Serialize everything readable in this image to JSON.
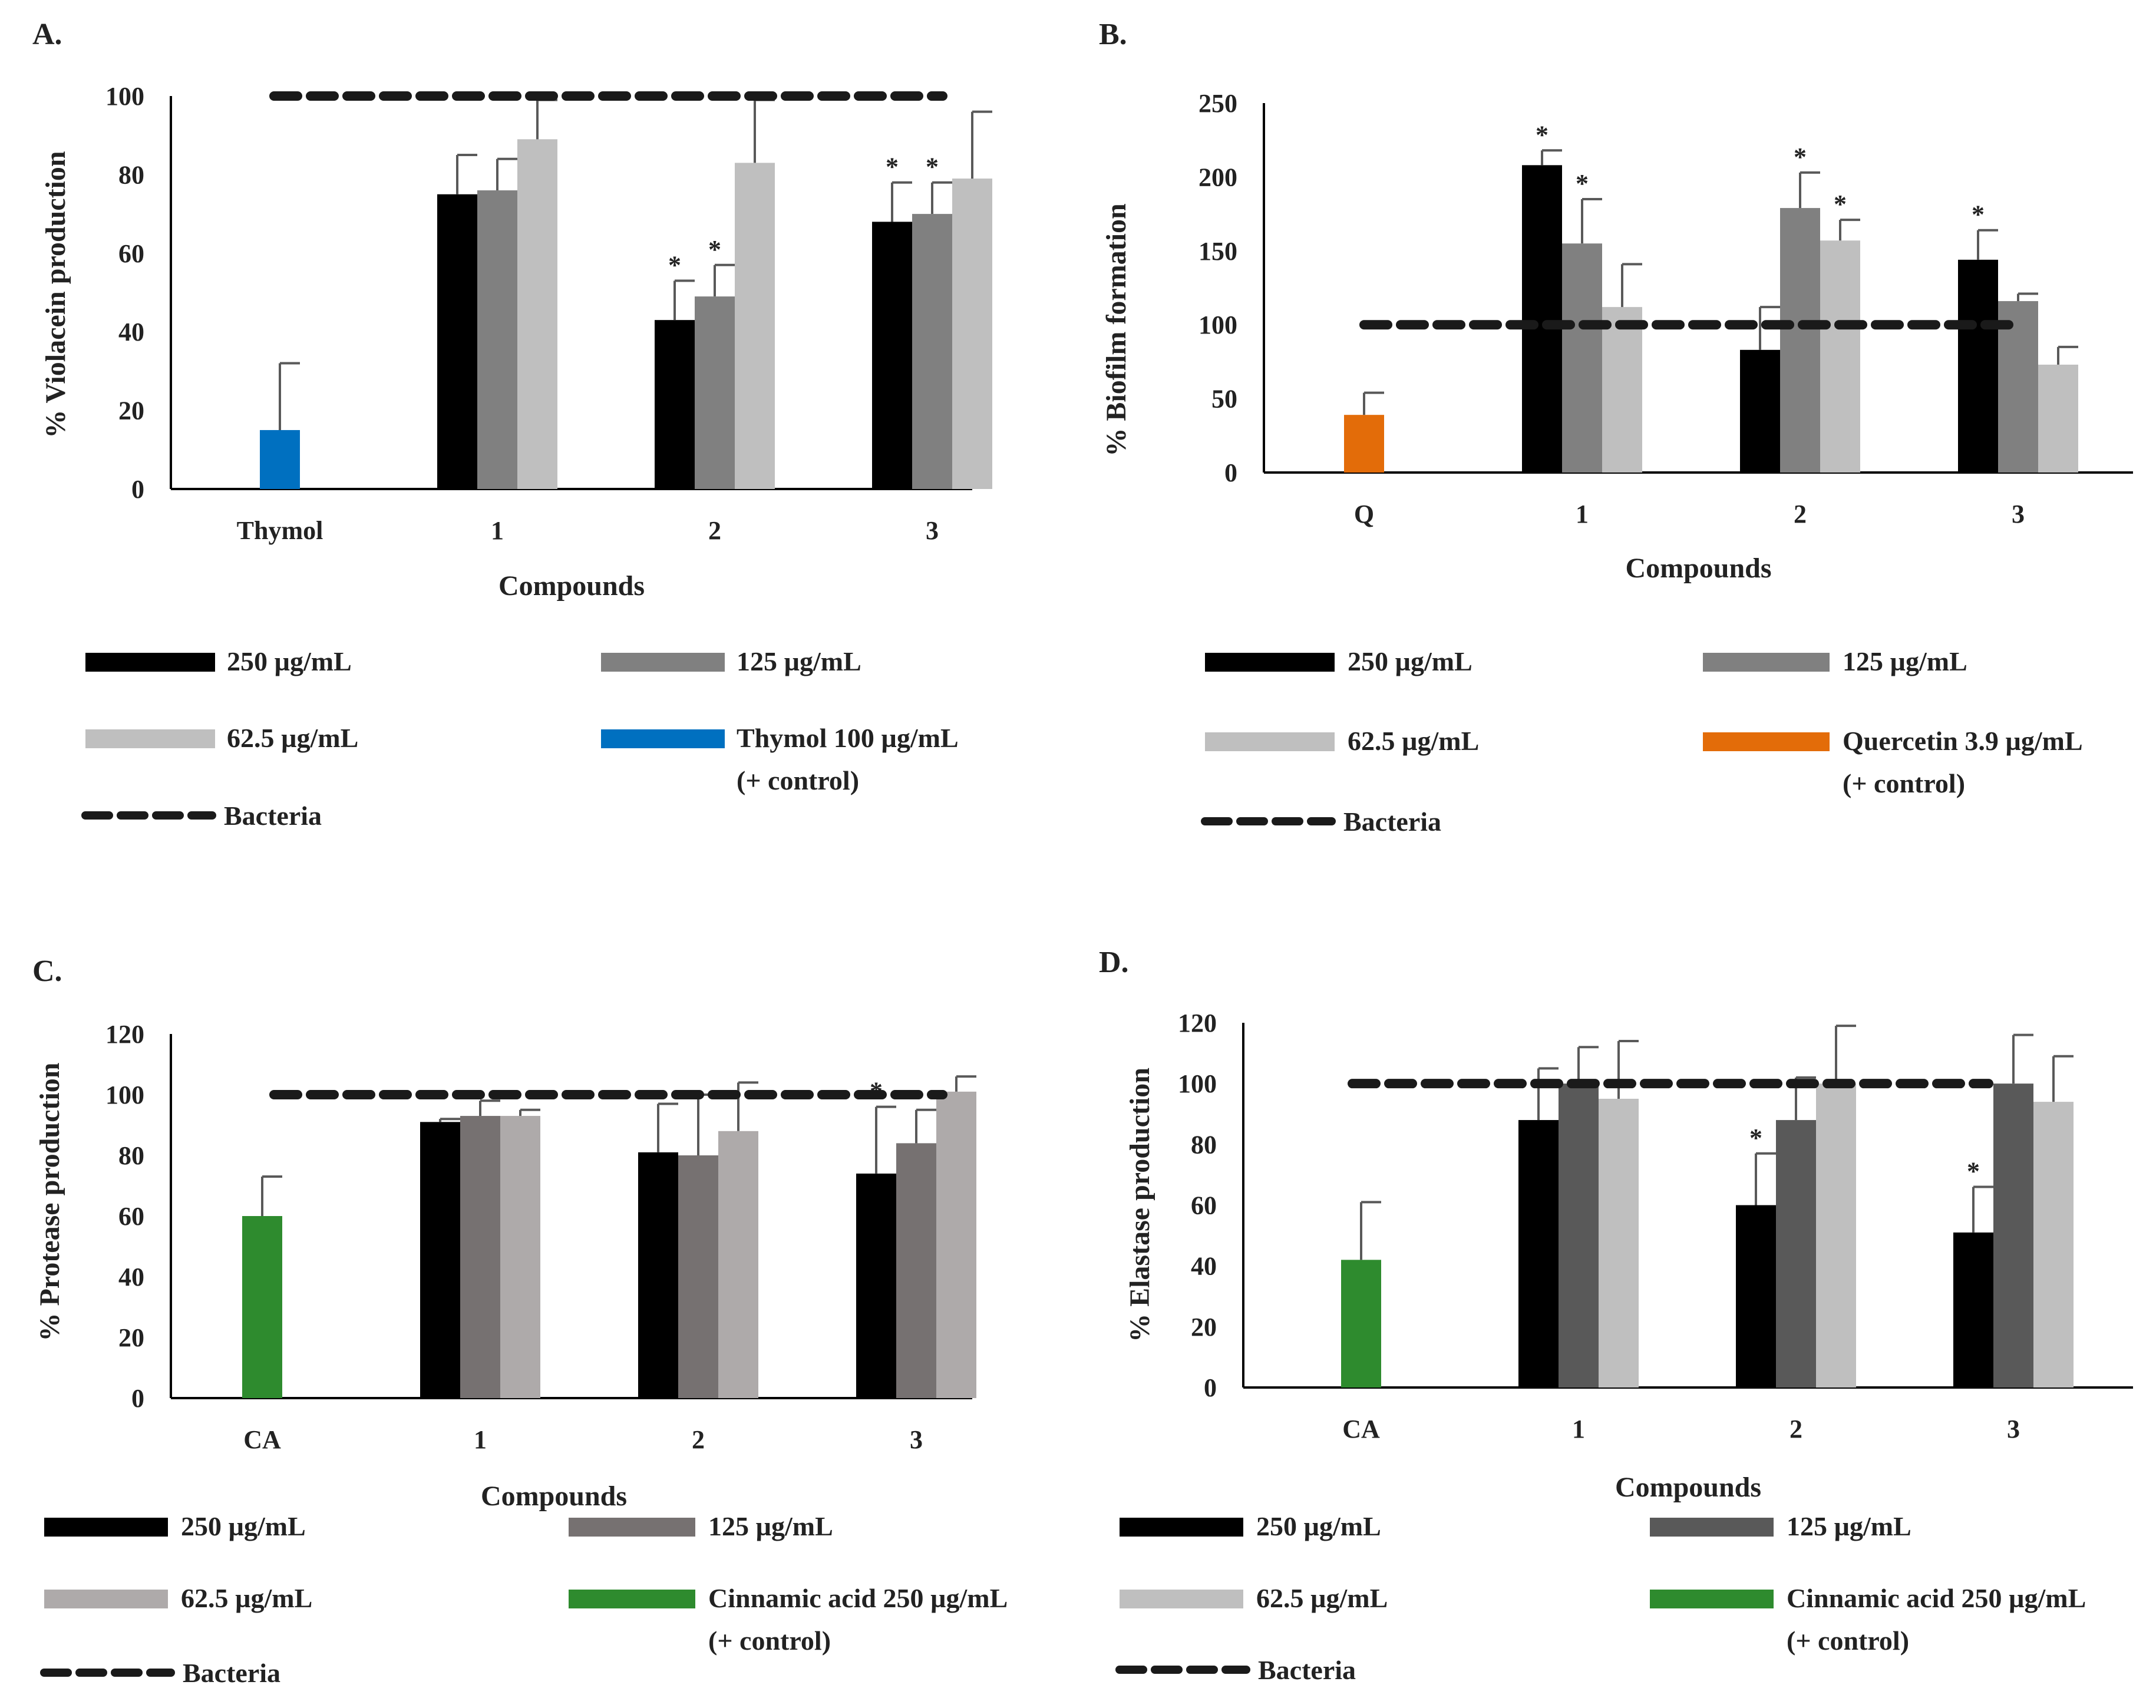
{
  "colors": {
    "c250": "#000000",
    "c125_A": "#808080",
    "c125_B": "#808080",
    "c125_C": "#767171",
    "c125_D": "#595959",
    "c62": "#BFBFBF",
    "c62_C": "#AEAAAA",
    "thymol": "#0070C0",
    "quercetin": "#E36C09",
    "cinnamic": "#2E8B2E",
    "err": "#595959",
    "bacteria": "#1a1a1a"
  },
  "legend_common": {
    "bacteria": "Bacteria",
    "control_suffix": "(+ control)"
  },
  "chart_data": [
    {
      "panel": "A.",
      "type": "bar",
      "ylabel": "% Violacein production",
      "xlabel": "Compounds",
      "ylim": [
        0,
        100
      ],
      "yticks": [
        "0",
        "20",
        "40",
        "60",
        "80",
        "100"
      ],
      "categories": [
        "Thymol",
        "1",
        "2",
        "3"
      ],
      "control": {
        "name": "Thymol 100  µg/mL",
        "value": 15,
        "error": 17,
        "color_key": "thymol"
      },
      "series": [
        {
          "name": "250  µg/mL",
          "color_key": "c250",
          "values": [
            null,
            75,
            43,
            68
          ],
          "errors": [
            null,
            10,
            10,
            10
          ],
          "stars": [
            false,
            false,
            true,
            true
          ]
        },
        {
          "name": "125  µg/mL",
          "color_key": "c125_A",
          "values": [
            null,
            76,
            49,
            70
          ],
          "errors": [
            null,
            8,
            8,
            8
          ],
          "stars": [
            false,
            false,
            true,
            true
          ]
        },
        {
          "name": "62.5  µg/mL",
          "color_key": "c62",
          "values": [
            null,
            89,
            83,
            79
          ],
          "errors": [
            null,
            10,
            16,
            17
          ],
          "stars": [
            false,
            false,
            false,
            false
          ]
        }
      ],
      "bacteria": 100
    },
    {
      "panel": "B.",
      "type": "bar",
      "ylabel": "% Biofilm formation",
      "xlabel": "Compounds",
      "ylim": [
        0,
        250
      ],
      "yticks": [
        "0",
        "50",
        "100",
        "150",
        "200",
        "250"
      ],
      "categories": [
        "Q",
        "1",
        "2",
        "3"
      ],
      "control": {
        "name": "Quercetin 3.9 µg/mL",
        "value": 39,
        "error": 15,
        "color_key": "quercetin"
      },
      "series": [
        {
          "name": "250 µg/mL",
          "color_key": "c250",
          "values": [
            null,
            208,
            83,
            144
          ],
          "errors": [
            null,
            10,
            29,
            20
          ],
          "stars": [
            false,
            true,
            false,
            true
          ]
        },
        {
          "name": "125 µg/mL",
          "color_key": "c125_B",
          "values": [
            null,
            155,
            179,
            116
          ],
          "errors": [
            null,
            30,
            24,
            5
          ],
          "stars": [
            false,
            true,
            true,
            false
          ]
        },
        {
          "name": "62.5 µg/mL",
          "color_key": "c62",
          "values": [
            null,
            112,
            157,
            73
          ],
          "errors": [
            null,
            29,
            14,
            12
          ],
          "stars": [
            false,
            false,
            true,
            false
          ]
        }
      ],
      "bacteria": 100
    },
    {
      "panel": "C.",
      "type": "bar",
      "ylabel": "% Protease production",
      "xlabel": "Compounds",
      "ylim": [
        0,
        120
      ],
      "yticks": [
        "0",
        "20",
        "40",
        "60",
        "80",
        "100",
        "120"
      ],
      "categories": [
        "CA",
        "1",
        "2",
        "3"
      ],
      "control": {
        "name": "Cinnamic acid 250 µg/mL",
        "value": 60,
        "error": 13,
        "color_key": "cinnamic"
      },
      "series": [
        {
          "name": "250 µg/mL",
          "color_key": "c250",
          "values": [
            null,
            91,
            81,
            74
          ],
          "errors": [
            null,
            1,
            16,
            22
          ],
          "stars": [
            false,
            false,
            false,
            true
          ]
        },
        {
          "name": "125 µg/mL",
          "color_key": "c125_C",
          "values": [
            null,
            93,
            80,
            84
          ],
          "errors": [
            null,
            5,
            20,
            11
          ],
          "stars": [
            false,
            false,
            false,
            false
          ]
        },
        {
          "name": "62.5 µg/mL",
          "color_key": "c62_C",
          "values": [
            null,
            93,
            88,
            101
          ],
          "errors": [
            null,
            2,
            16,
            5
          ],
          "stars": [
            false,
            false,
            false,
            false
          ]
        }
      ],
      "bacteria": 100
    },
    {
      "panel": "D.",
      "type": "bar",
      "ylabel": "% Elastase production",
      "xlabel": "Compounds",
      "ylim": [
        0,
        120
      ],
      "yticks": [
        "0",
        "20",
        "40",
        "60",
        "80",
        "100",
        "120"
      ],
      "categories": [
        "CA",
        "1",
        "2",
        "3"
      ],
      "control": {
        "name": "Cinnamic acid 250 µg/mL",
        "value": 42,
        "error": 19,
        "color_key": "cinnamic"
      },
      "series": [
        {
          "name": "250 µg/mL",
          "color_key": "c250",
          "values": [
            null,
            88,
            60,
            51
          ],
          "errors": [
            null,
            17,
            17,
            15
          ],
          "stars": [
            false,
            false,
            true,
            true
          ]
        },
        {
          "name": "125 µg/mL",
          "color_key": "c125_D",
          "values": [
            null,
            100,
            88,
            100
          ],
          "errors": [
            null,
            12,
            14,
            16
          ],
          "stars": [
            false,
            false,
            false,
            false
          ]
        },
        {
          "name": "62.5 µg/mL",
          "color_key": "c62",
          "values": [
            null,
            95,
            100,
            94
          ],
          "errors": [
            null,
            19,
            19,
            15
          ],
          "stars": [
            false,
            false,
            false,
            false
          ]
        }
      ],
      "bacteria": 100
    }
  ]
}
